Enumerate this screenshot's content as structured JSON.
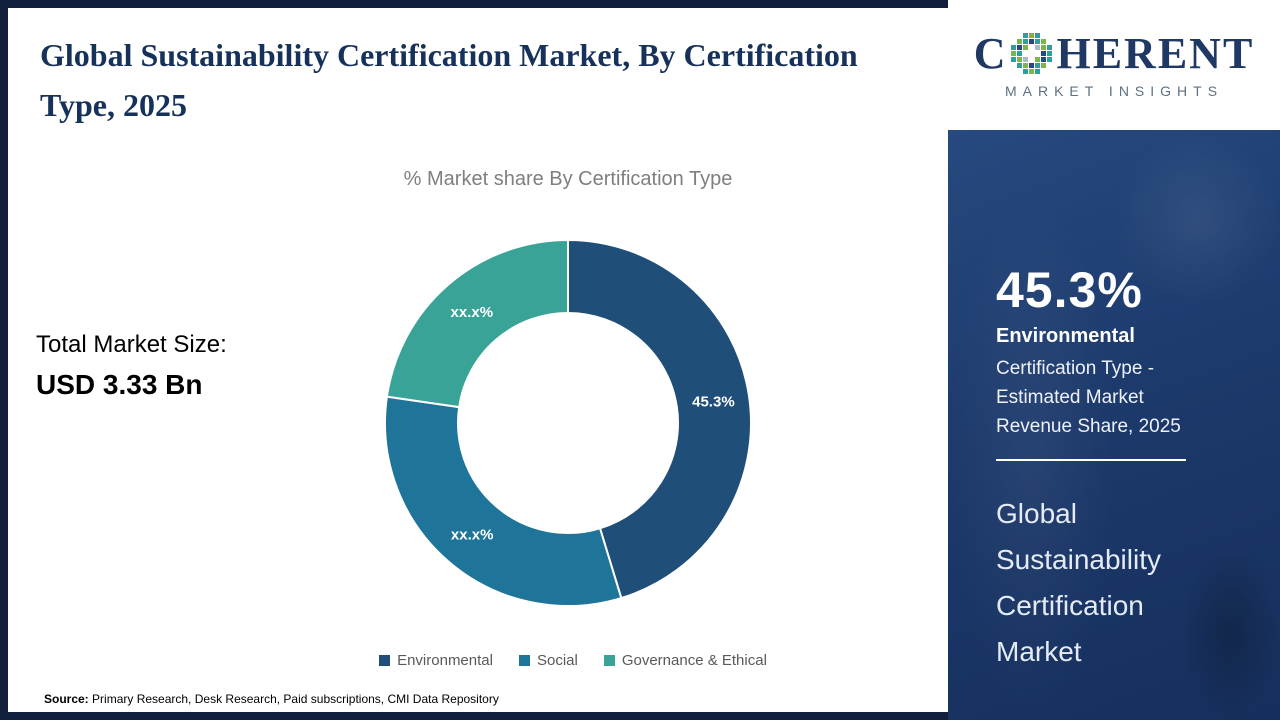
{
  "page": {
    "title": "Global Sustainability Certification Market, By Certification Type, 2025",
    "source_label": "Source:",
    "source_text": "Primary Research, Desk Research, Paid subscriptions, CMI Data Repository"
  },
  "market_size": {
    "label": "Total Market Size:",
    "value": "USD 3.33 Bn"
  },
  "chart_data": {
    "type": "pie",
    "subtype": "donut",
    "title": "% Market share By Certification Type",
    "categories": [
      "Environmental",
      "Social",
      "Governance & Ethical"
    ],
    "values": [
      45.3,
      32.0,
      22.7
    ],
    "value_labels": [
      "45.3%",
      "xx.x%",
      "xx.x%"
    ],
    "colors": [
      "#1f4e79",
      "#1f7599",
      "#38a396"
    ],
    "legend_position": "bottom",
    "inner_radius_ratio": 0.6
  },
  "sidebar": {
    "stat_value": "45.3%",
    "stat_label": "Environmental",
    "stat_description": "Certification Type - Estimated Market Revenue Share, 2025",
    "footer_title": "Global Sustainability Certification Market",
    "background_color": "#1d3a6c"
  },
  "logo": {
    "name": "COHERENT",
    "name_first_letter": "C",
    "name_rest": "HERENT",
    "tagline": "MARKET INSIGHTS",
    "text_color": "#1f3864",
    "mosaic_colors": {
      "teal": "#2f9e9e",
      "green": "#7ab648",
      "navy": "#27477f",
      "gray": "#a9bcc6"
    }
  }
}
